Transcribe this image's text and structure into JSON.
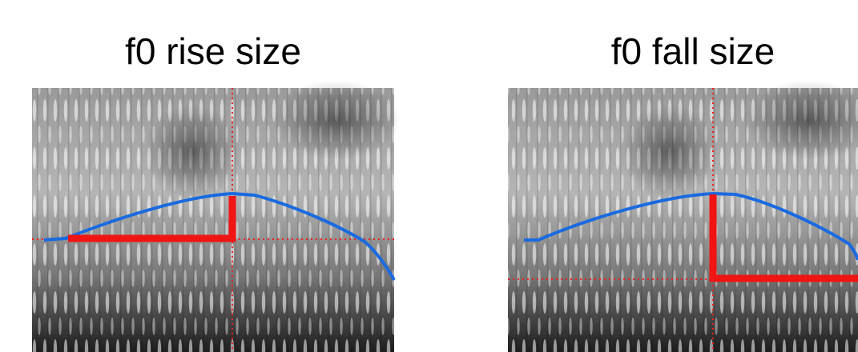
{
  "panels": [
    {
      "title": "f0 rise size"
    },
    {
      "title": "f0 fall size"
    }
  ]
}
